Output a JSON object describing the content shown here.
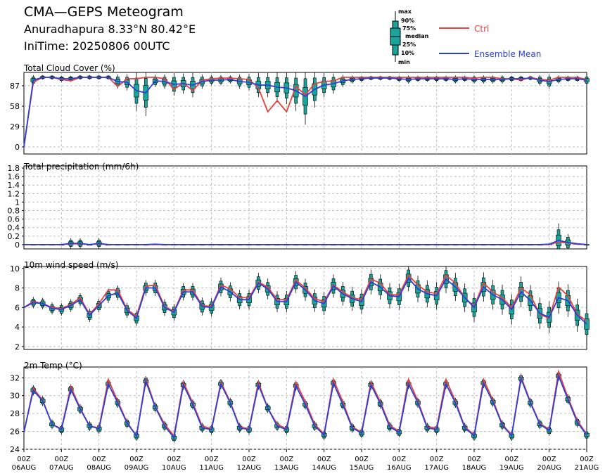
{
  "header": {
    "title": "CMA—GEPS Meteogram",
    "location": "Anuradhapura 8.33°N 80.42°E",
    "init": "IniTime: 20250806 00UTC"
  },
  "legend": {
    "box_labels": [
      "max",
      "90%",
      "75%",
      "median",
      "25%",
      "10%",
      "min"
    ],
    "ctrl_label": "Ctrl",
    "mean_label": "Ensemble Mean",
    "ctrl_color": "#e8413e",
    "mean_color": "#2b3fd8",
    "box_color": "#1aa59c"
  },
  "x_axis": {
    "start": "2025-08-06 00Z",
    "step_hours": 6,
    "hour_labels": [
      "00Z",
      "00Z",
      "00Z",
      "00Z",
      "00Z",
      "00Z",
      "00Z",
      "00Z",
      "00Z",
      "00Z",
      "00Z",
      "00Z",
      "00Z",
      "00Z",
      "00Z",
      "00Z"
    ],
    "date_labels": [
      "06AUG",
      "07AUG",
      "08AUG",
      "09AUG",
      "10AUG",
      "11AUG",
      "12AUG",
      "13AUG",
      "14AUG",
      "15AUG",
      "16AUG",
      "17AUG",
      "18AUG",
      "19AUG",
      "20AUG",
      "21AUG"
    ]
  },
  "chart_data": [
    {
      "type": "line",
      "title": "Total Cloud Cover (%)",
      "ylim": [
        -10,
        106
      ],
      "yticks": [
        0,
        29,
        58,
        87
      ],
      "ytick_labels": [
        "0",
        "29",
        "58",
        "87"
      ],
      "grid": true,
      "ctrl": [
        0,
        92,
        99,
        99,
        96,
        94,
        99,
        99,
        99,
        99,
        86,
        97,
        97,
        99,
        99,
        97,
        82,
        91,
        80,
        95,
        97,
        98,
        98,
        97,
        96,
        84,
        50,
        66,
        50,
        86,
        74,
        90,
        93,
        94,
        99,
        99,
        99,
        99,
        99,
        99,
        99,
        99,
        99,
        99,
        99,
        99,
        99,
        99,
        98,
        99,
        99,
        97,
        97,
        95,
        99,
        96,
        95,
        99,
        99,
        99,
        96
      ],
      "mean": [
        0,
        95,
        99,
        99,
        97,
        97,
        99,
        99,
        99,
        99,
        93,
        92,
        80,
        77,
        94,
        93,
        89,
        90,
        88,
        93,
        95,
        95,
        96,
        93,
        92,
        88,
        88,
        85,
        84,
        80,
        72,
        82,
        88,
        90,
        94,
        96,
        97,
        98,
        98,
        98,
        97,
        96,
        97,
        97,
        97,
        97,
        96,
        97,
        96,
        96,
        96,
        96,
        97,
        97,
        98,
        95,
        93,
        96,
        97,
        97,
        95
      ]
    },
    {
      "type": "line",
      "title": "Total precipitation (mm/6h)",
      "ylim": [
        -0.1,
        1.85
      ],
      "yticks": [
        0,
        0.2,
        0.4,
        0.6,
        0.8,
        1,
        1.2,
        1.4,
        1.6,
        1.8
      ],
      "ytick_labels": [
        "0",
        "0.2",
        "0.4",
        "0.6",
        "0.8",
        "1",
        "1.2",
        "1.4",
        "1.6",
        "1.8"
      ],
      "grid": true,
      "ctrl": [
        0,
        0,
        0,
        0,
        0,
        0.02,
        0.02,
        0,
        0.02,
        0,
        0,
        0,
        0,
        0,
        0,
        0,
        0,
        0,
        0,
        0,
        0,
        0,
        0,
        0,
        0,
        0,
        0,
        0,
        0,
        0,
        0,
        0,
        0,
        0,
        0,
        0,
        0,
        0,
        0,
        0,
        0,
        0,
        0,
        0,
        0,
        0,
        0,
        0,
        0,
        0,
        0,
        0,
        0,
        0,
        0,
        0,
        0,
        0.06,
        0.04,
        0.01,
        0
      ],
      "mean": [
        0,
        0,
        0,
        0,
        0,
        0.03,
        0.03,
        0,
        0.03,
        0,
        0,
        0,
        0,
        0,
        0.01,
        0,
        0,
        0,
        0,
        0,
        0,
        0,
        0,
        0,
        0,
        0,
        0,
        0,
        0,
        0,
        0,
        0,
        0,
        0,
        0,
        0,
        0,
        0,
        0,
        0,
        0,
        0,
        0,
        0,
        0,
        0,
        0,
        0,
        0,
        0,
        0,
        0,
        0,
        0,
        0,
        0,
        0.01,
        0.1,
        0.05,
        0.02,
        0
      ]
    },
    {
      "type": "line",
      "title": "10m wind speed (m/s)",
      "ylim": [
        1.7,
        10.2
      ],
      "yticks": [
        2,
        4,
        6,
        8,
        10
      ],
      "ytick_labels": [
        "2",
        "4",
        "6",
        "8",
        "10"
      ],
      "grid": true,
      "ctrl": [
        6.0,
        6.6,
        6.4,
        6.0,
        5.9,
        6.3,
        7.0,
        5.3,
        6.4,
        7.8,
        7.8,
        5.8,
        5.1,
        8.2,
        8.3,
        6.1,
        5.6,
        7.8,
        7.8,
        6.2,
        6.1,
        8.3,
        7.9,
        7.0,
        7.0,
        8.6,
        8.1,
        6.8,
        6.8,
        8.8,
        8.0,
        6.9,
        6.6,
        8.3,
        7.6,
        7.0,
        6.8,
        8.9,
        8.5,
        7.3,
        7.3,
        9.3,
        8.3,
        7.6,
        7.4,
        9.3,
        8.5,
        7.0,
        6.1,
        8.5,
        7.6,
        7.0,
        6.0,
        8.0,
        7.3,
        5.3,
        4.9,
        8.1,
        7.2,
        5.3,
        4.6
      ],
      "mean": [
        6.0,
        6.5,
        6.4,
        5.9,
        5.8,
        6.2,
        6.8,
        5.2,
        6.2,
        7.2,
        7.5,
        5.7,
        4.9,
        8.0,
        8.0,
        6.0,
        5.5,
        7.6,
        7.6,
        6.1,
        6.0,
        8.1,
        7.6,
        6.8,
        6.8,
        8.5,
        7.9,
        6.6,
        6.6,
        8.6,
        7.8,
        6.7,
        6.4,
        8.2,
        7.4,
        6.9,
        6.6,
        8.6,
        8.1,
        7.2,
        7.1,
        9.0,
        7.9,
        7.4,
        7.2,
        8.9,
        8.1,
        7.0,
        6.0,
        8.1,
        7.3,
        6.8,
        5.8,
        7.6,
        6.7,
        5.4,
        5.0,
        7.0,
        6.7,
        5.2,
        4.3
      ]
    },
    {
      "type": "line",
      "title": "2m Temp (°C)",
      "ylim": [
        24,
        33.2
      ],
      "yticks": [
        24,
        26,
        28,
        30,
        32
      ],
      "ytick_labels": [
        "24",
        "26",
        "28",
        "30",
        "32"
      ],
      "grid": true,
      "ctrl": [
        25.9,
        30.8,
        29.5,
        26.8,
        26.3,
        31.0,
        28.6,
        26.6,
        26.4,
        31.8,
        29.4,
        27.0,
        25.5,
        31.9,
        28.8,
        26.8,
        25.5,
        31.5,
        29.2,
        26.6,
        26.3,
        31.5,
        29.3,
        26.5,
        26.3,
        31.5,
        28.6,
        26.8,
        26.3,
        31.5,
        29.3,
        26.8,
        25.7,
        31.8,
        29.3,
        26.5,
        25.9,
        31.5,
        29.3,
        26.7,
        26.0,
        31.8,
        29.4,
        26.5,
        26.4,
        31.8,
        29.4,
        26.5,
        25.6,
        31.8,
        29.5,
        26.8,
        25.6,
        32.1,
        29.3,
        26.9,
        26.2,
        32.7,
        29.8,
        27.2,
        25.7
      ],
      "mean": [
        25.9,
        30.6,
        29.4,
        26.8,
        26.2,
        30.7,
        28.5,
        26.6,
        26.3,
        31.3,
        29.2,
        26.9,
        25.5,
        31.6,
        28.7,
        26.6,
        25.3,
        31.2,
        29.0,
        26.4,
        26.2,
        31.3,
        29.2,
        26.4,
        26.2,
        31.2,
        28.6,
        26.6,
        26.2,
        31.1,
        29.0,
        26.6,
        25.6,
        31.4,
        29.0,
        26.4,
        25.8,
        31.2,
        29.1,
        26.5,
        25.9,
        31.3,
        29.2,
        26.4,
        26.2,
        31.3,
        29.2,
        26.4,
        25.5,
        31.4,
        29.3,
        26.7,
        25.5,
        31.9,
        29.2,
        26.8,
        26.1,
        32.2,
        29.6,
        27.0,
        25.6
      ]
    }
  ]
}
